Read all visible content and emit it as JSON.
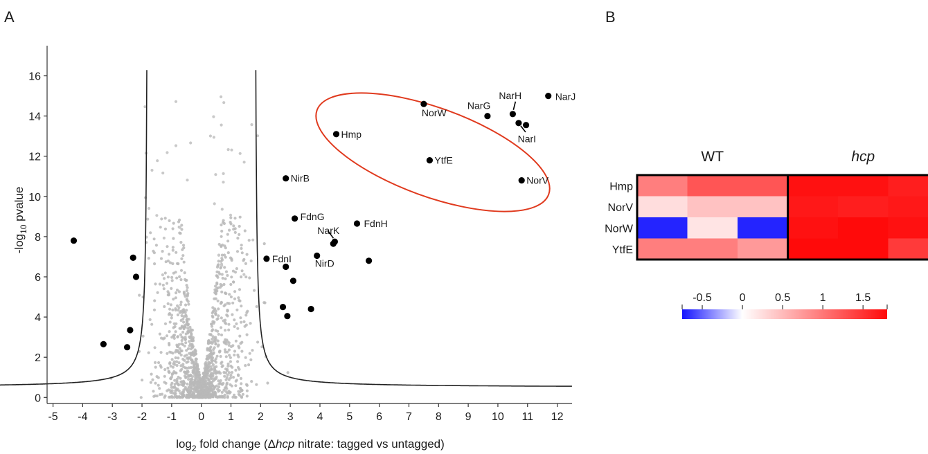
{
  "panels": {
    "a_letter": "A",
    "b_letter": "B"
  },
  "chart_data": [
    {
      "type": "scatter",
      "xlabel_prefix": "log",
      "xlabel_sub": "2",
      "xlabel_mid": " fold change (Δ",
      "xlabel_italic": "hcp",
      "xlabel_suffix": " nitrate: tagged vs untagged)",
      "ylabel_prefix": "-log",
      "ylabel_sub": "10",
      "ylabel_suffix": " pvalue",
      "xlim": [
        -5.2,
        12.5
      ],
      "ylim": [
        -0.3,
        17.5
      ],
      "xticks": [
        "-5",
        "-4",
        "-3",
        "-2",
        "-1",
        "0",
        "1",
        "2",
        "3",
        "4",
        "5",
        "6",
        "7",
        "8",
        "9",
        "10",
        "11",
        "12"
      ],
      "yticks": [
        "0",
        "2",
        "4",
        "6",
        "8",
        "10",
        "12",
        "14",
        "16"
      ],
      "threshold_curve": {
        "x0": 1.8,
        "c": 0.5,
        "a": 0.6
      },
      "highlight_points": [
        {
          "x": -4.3,
          "y": 7.8
        },
        {
          "x": -3.3,
          "y": 2.65
        },
        {
          "x": -2.5,
          "y": 2.5
        },
        {
          "x": -2.4,
          "y": 3.35
        },
        {
          "x": -2.3,
          "y": 6.95
        },
        {
          "x": -2.2,
          "y": 6.0
        },
        {
          "x": 2.2,
          "y": 6.9,
          "label": "FdnI"
        },
        {
          "x": 2.75,
          "y": 4.5
        },
        {
          "x": 2.85,
          "y": 6.5
        },
        {
          "x": 2.85,
          "y": 10.9,
          "label": "NirB"
        },
        {
          "x": 2.9,
          "y": 4.05
        },
        {
          "x": 3.1,
          "y": 5.8
        },
        {
          "x": 3.15,
          "y": 8.9,
          "label": "FdnG"
        },
        {
          "x": 3.7,
          "y": 4.4
        },
        {
          "x": 3.9,
          "y": 7.05,
          "label": "NirD"
        },
        {
          "x": 4.45,
          "y": 7.65,
          "label": "NarK"
        },
        {
          "x": 4.5,
          "y": 7.75
        },
        {
          "x": 4.55,
          "y": 13.1,
          "label": "Hmp"
        },
        {
          "x": 5.25,
          "y": 8.65,
          "label": "FdnH"
        },
        {
          "x": 5.65,
          "y": 6.8
        },
        {
          "x": 7.5,
          "y": 14.6,
          "label": "NorW"
        },
        {
          "x": 7.7,
          "y": 11.8,
          "label": "YtfE"
        },
        {
          "x": 9.65,
          "y": 14.0,
          "label": "NarG"
        },
        {
          "x": 10.5,
          "y": 14.1,
          "label": "NarH"
        },
        {
          "x": 10.7,
          "y": 13.65
        },
        {
          "x": 10.8,
          "y": 10.8,
          "label": "NorV"
        },
        {
          "x": 10.95,
          "y": 13.55,
          "label": "NarI"
        },
        {
          "x": 11.7,
          "y": 15.0,
          "label": "NarJ"
        }
      ],
      "background_cloud": {
        "n": 1300,
        "xsd": 0.75,
        "peak": 9
      }
    },
    {
      "type": "heatmap",
      "col_groups": [
        {
          "name": "WT",
          "italic": false
        },
        {
          "name": "hcp",
          "italic": true
        }
      ],
      "rows": [
        "Hmp",
        "NorV",
        "NorW",
        "YtfE"
      ],
      "values": [
        [
          0.95,
          1.25,
          1.25,
          1.75,
          1.75,
          1.65
        ],
        [
          0.25,
          0.45,
          0.45,
          1.7,
          1.65,
          1.7
        ],
        [
          -0.7,
          0.2,
          -0.7,
          1.75,
          1.8,
          1.75
        ],
        [
          0.95,
          0.95,
          0.75,
          1.8,
          1.8,
          1.45
        ]
      ],
      "colorbar_ticks": [
        "-0.5",
        "0",
        "0.5",
        "1",
        "1.5"
      ],
      "colorbar_range": [
        -0.75,
        1.8
      ],
      "colors": {
        "low": "#1414ff",
        "mid": "#ffffff",
        "high": "#ff0a0a"
      }
    }
  ]
}
